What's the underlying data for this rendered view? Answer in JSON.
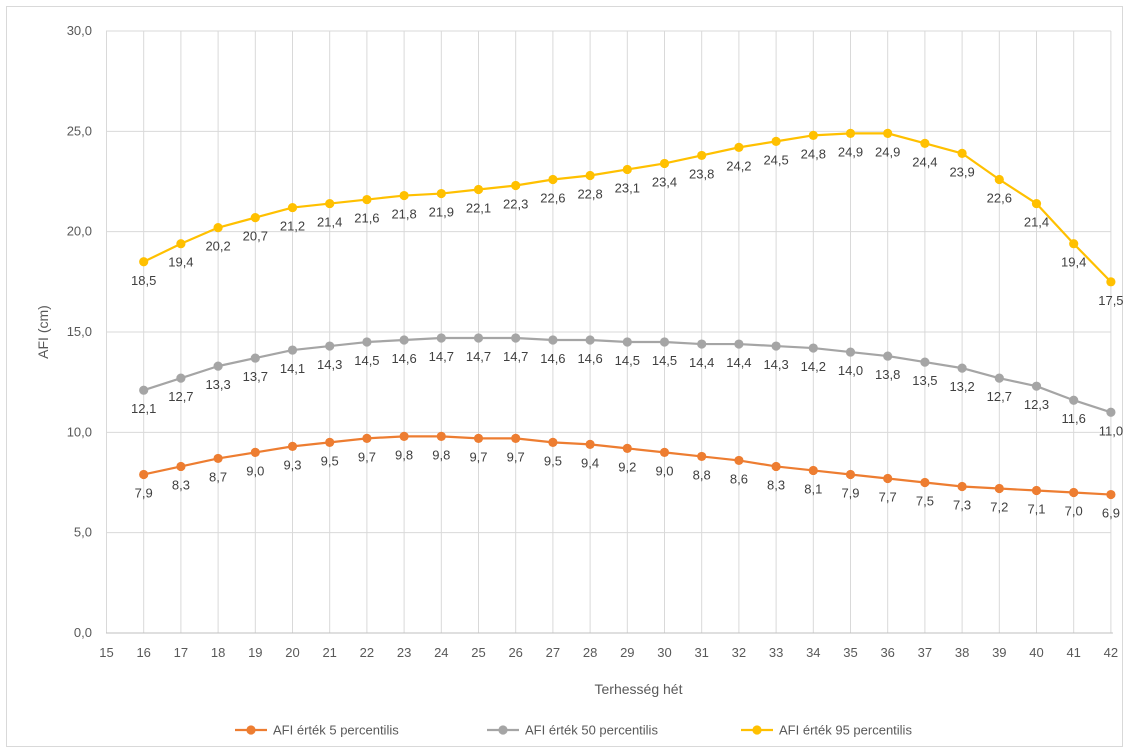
{
  "chart_data": {
    "type": "line",
    "xlabel": "Terhesség hét",
    "ylabel": "AFI (cm)",
    "xlim": [
      15,
      42
    ],
    "ylim": [
      0,
      30
    ],
    "x_ticks": [
      "15",
      "16",
      "17",
      "18",
      "19",
      "20",
      "21",
      "22",
      "23",
      "24",
      "25",
      "26",
      "27",
      "28",
      "29",
      "30",
      "31",
      "32",
      "33",
      "34",
      "35",
      "36",
      "37",
      "38",
      "39",
      "40",
      "41",
      "42"
    ],
    "y_ticks": [
      "0,0",
      "5,0",
      "10,0",
      "15,0",
      "20,0",
      "25,0",
      "30,0"
    ],
    "grid": true,
    "legend_position": "bottom",
    "x": [
      16,
      17,
      18,
      19,
      20,
      21,
      22,
      23,
      24,
      25,
      26,
      27,
      28,
      29,
      30,
      31,
      32,
      33,
      34,
      35,
      36,
      37,
      38,
      39,
      40,
      41,
      42
    ],
    "series": [
      {
        "name": "AFI érték 5 percentilis",
        "color": "#ED7D31",
        "values": [
          7.9,
          8.3,
          8.7,
          9.0,
          9.3,
          9.5,
          9.7,
          9.8,
          9.8,
          9.7,
          9.7,
          9.5,
          9.4,
          9.2,
          9.0,
          8.8,
          8.6,
          8.3,
          8.1,
          7.9,
          7.7,
          7.5,
          7.3,
          7.2,
          7.1,
          7.0,
          6.9
        ],
        "labels": [
          "7,9",
          "8,3",
          "8,7",
          "9,0",
          "9,3",
          "9,5",
          "9,7",
          "9,8",
          "9,8",
          "9,7",
          "9,7",
          "9,5",
          "9,4",
          "9,2",
          "9,0",
          "8,8",
          "8,6",
          "8,3",
          "8,1",
          "7,9",
          "7,7",
          "7,5",
          "7,3",
          "7,2",
          "7,1",
          "7,0",
          "6,9"
        ]
      },
      {
        "name": "AFI érték 50 percentilis",
        "color": "#A5A5A5",
        "values": [
          12.1,
          12.7,
          13.3,
          13.7,
          14.1,
          14.3,
          14.5,
          14.6,
          14.7,
          14.7,
          14.7,
          14.6,
          14.6,
          14.5,
          14.5,
          14.4,
          14.4,
          14.3,
          14.2,
          14.0,
          13.8,
          13.5,
          13.2,
          12.7,
          12.3,
          11.6,
          11.0
        ],
        "labels": [
          "12,1",
          "12,7",
          "13,3",
          "13,7",
          "14,1",
          "14,3",
          "14,5",
          "14,6",
          "14,7",
          "14,7",
          "14,7",
          "14,6",
          "14,6",
          "14,5",
          "14,5",
          "14,4",
          "14,4",
          "14,3",
          "14,2",
          "14,0",
          "13,8",
          "13,5",
          "13,2",
          "12,7",
          "12,3",
          "11,6",
          "11,0"
        ]
      },
      {
        "name": "AFI érték 95 percentilis",
        "color": "#FFC000",
        "values": [
          18.5,
          19.4,
          20.2,
          20.7,
          21.2,
          21.4,
          21.6,
          21.8,
          21.9,
          22.1,
          22.3,
          22.6,
          22.8,
          23.1,
          23.4,
          23.8,
          24.2,
          24.5,
          24.8,
          24.9,
          24.9,
          24.4,
          23.9,
          22.6,
          21.4,
          19.4,
          17.5
        ],
        "labels": [
          "18,5",
          "19,4",
          "20,2",
          "20,7",
          "21,2",
          "21,4",
          "21,6",
          "21,8",
          "21,9",
          "22,1",
          "22,3",
          "22,6",
          "22,8",
          "23,1",
          "23,4",
          "23,8",
          "24,2",
          "24,5",
          "24,8",
          "24,9",
          "24,9",
          "24,4",
          "23,9",
          "22,6",
          "21,4",
          "19,4",
          "17,5"
        ]
      }
    ]
  }
}
